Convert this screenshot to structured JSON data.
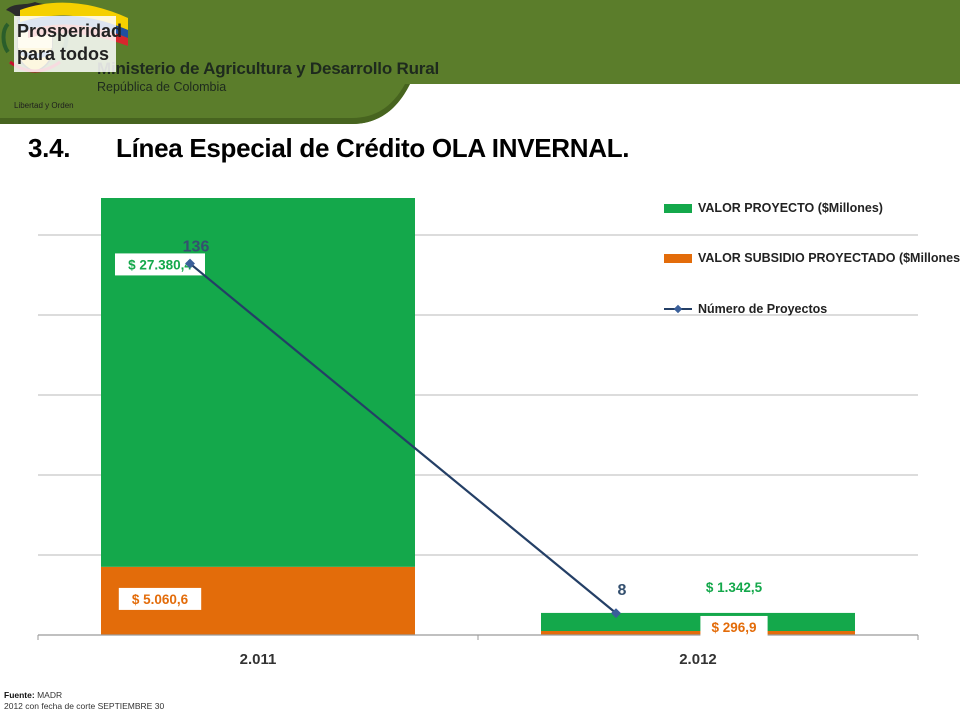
{
  "header": {
    "ministry": "Ministerio de Agricultura y Desarrollo Rural",
    "country": "República de Colombia",
    "motto": "Libertad y Orden",
    "brand_line1": "Prosperidad",
    "brand_line2": "para todos",
    "band_color": "#5b7d2b"
  },
  "slide": {
    "number": "3.4.",
    "title": "Línea Especial de Crédito OLA INVERNAL."
  },
  "chart_data": {
    "type": "bar",
    "stacked": true,
    "categories": [
      "2.011",
      "2.012"
    ],
    "series": [
      {
        "name": "VALOR PROYECTO ($Millones)",
        "kind": "bar",
        "color": "#14a84b",
        "values": [
          27380.4,
          1342.5
        ],
        "labels": [
          "$ 27.380,4",
          "$ 1.342,5"
        ]
      },
      {
        "name": "VALOR SUBSIDIO PROYECTADO ($Millones)",
        "kind": "bar",
        "color": "#e36c0a",
        "values": [
          5060.6,
          296.9
        ],
        "labels": [
          "$ 5.060,6",
          "$ 296,9"
        ]
      },
      {
        "name": "Número de Proyectos",
        "kind": "line",
        "color": "#243f66",
        "values": [
          136,
          8
        ],
        "labels": [
          "136",
          "8"
        ]
      }
    ],
    "ylim": [
      0,
      32441
    ],
    "line_ylim": [
      0,
      160
    ],
    "gridlines": true,
    "legend_position": "top-right"
  },
  "footer": {
    "source_label": "Fuente:",
    "source": "MADR",
    "note": "2012 con fecha de corte SEPTIEMBRE 30"
  }
}
